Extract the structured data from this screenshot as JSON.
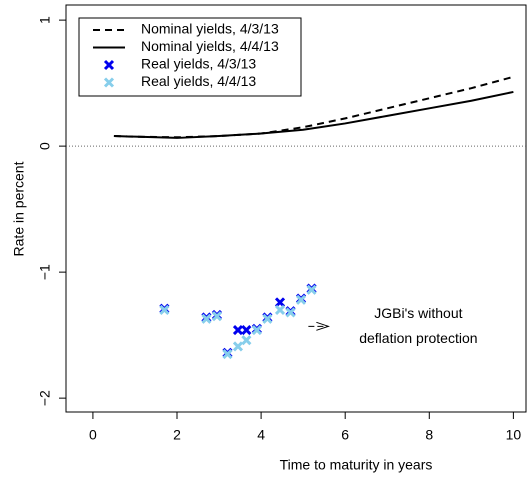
{
  "chart_data": {
    "type": "line",
    "xlabel": "Time to maturity in years",
    "ylabel": "Rate in percent",
    "xlim": [
      -0.64,
      10.3
    ],
    "ylim": [
      -2.11,
      1.12
    ],
    "xticks": [
      0,
      2,
      4,
      6,
      8,
      10
    ],
    "yticks": [
      {
        "value": -2,
        "label": "−2"
      },
      {
        "value": -1,
        "label": "−1"
      },
      0,
      1
    ],
    "reference_line": 0,
    "legend": "top-left",
    "annotation": {
      "lines": [
        "JGBi's without",
        "deflation protection"
      ],
      "x": 5.6,
      "y": -1.43
    },
    "series": [
      {
        "name": "Nominal yields, 4/3/13",
        "style": "dashed",
        "color": "#000000",
        "x": [
          0.5,
          1,
          2,
          3,
          4,
          5,
          6,
          7,
          8,
          9,
          10
        ],
        "values": [
          0.08,
          0.075,
          0.07,
          0.08,
          0.1,
          0.15,
          0.22,
          0.3,
          0.38,
          0.46,
          0.55
        ]
      },
      {
        "name": "Nominal yields, 4/4/13",
        "style": "solid",
        "color": "#000000",
        "x": [
          0.5,
          1,
          2,
          3,
          4,
          5,
          6,
          7,
          8,
          9,
          10
        ],
        "values": [
          0.08,
          0.075,
          0.065,
          0.08,
          0.1,
          0.13,
          0.18,
          0.24,
          0.3,
          0.36,
          0.43
        ]
      },
      {
        "name": "Real yields, 4/3/13",
        "style": "points",
        "color": "#0000ee",
        "x": [
          1.7,
          2.7,
          2.95,
          3.2,
          3.45,
          3.65,
          3.9,
          4.15,
          4.45,
          4.7,
          4.95,
          5.2
        ],
        "values": [
          -1.29,
          -1.36,
          -1.34,
          -1.64,
          -1.46,
          -1.46,
          -1.45,
          -1.36,
          -1.24,
          -1.31,
          -1.21,
          -1.13
        ]
      },
      {
        "name": "Real yields, 4/4/13",
        "style": "points",
        "color": "#87ceeb",
        "x": [
          1.7,
          2.7,
          2.95,
          3.2,
          3.45,
          3.65,
          3.9,
          4.15,
          4.45,
          4.7,
          4.95,
          5.2
        ],
        "values": [
          -1.3,
          -1.37,
          -1.35,
          -1.65,
          -1.59,
          -1.54,
          -1.46,
          -1.37,
          -1.3,
          -1.32,
          -1.22,
          -1.14
        ]
      }
    ]
  }
}
